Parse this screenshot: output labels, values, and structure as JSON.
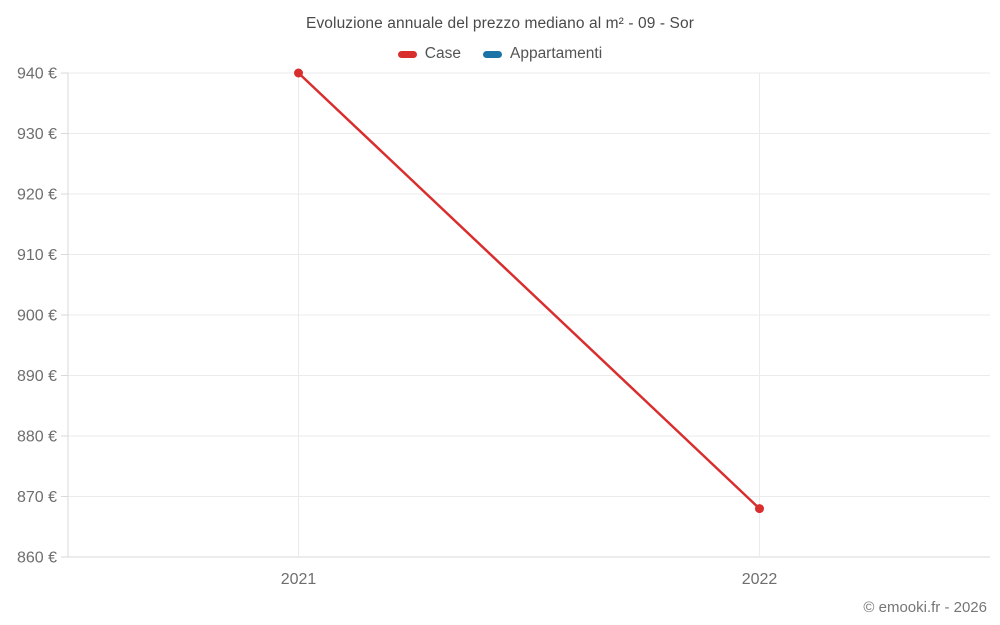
{
  "chart_data": {
    "type": "line",
    "title": "Evoluzione annuale del prezzo mediano al m² - 09 - Sor",
    "categories": [
      "2021",
      "2022"
    ],
    "series": [
      {
        "name": "Case",
        "color": "#d92e2e",
        "values": [
          940,
          868
        ]
      },
      {
        "name": "Appartamenti",
        "color": "#1c73a5",
        "values": [
          null,
          null
        ]
      }
    ],
    "ylim": [
      860,
      940
    ],
    "ytick_step": 10,
    "ytick_suffix": " €",
    "grid": true,
    "legend_position": "top",
    "xlabel": "",
    "ylabel": ""
  },
  "footer": {
    "credit": "© emooki.fr - 2026"
  }
}
